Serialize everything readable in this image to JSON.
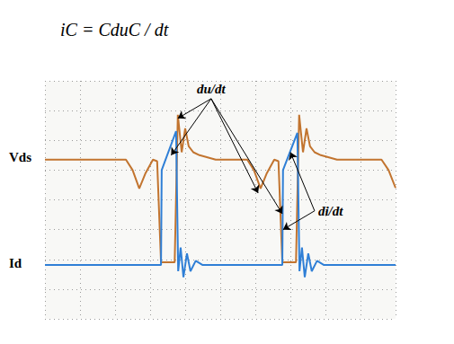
{
  "chart_data": {
    "type": "line",
    "title": "iC = CduC / dt",
    "xlim": [
      0,
      10
    ],
    "ylim": [
      0,
      8
    ],
    "xticks": [
      0,
      1,
      2,
      3,
      4,
      5,
      6,
      7,
      8,
      9,
      10
    ],
    "yticks": [
      0,
      1,
      2,
      3,
      4,
      5,
      6,
      7,
      8
    ],
    "grid": true,
    "tick_labels": false,
    "series": [
      {
        "name": "Vds",
        "color": "#c2742f",
        "x": [
          0,
          2.31,
          2.5,
          2.69,
          2.87,
          3.08,
          3.2,
          3.31,
          3.7,
          3.79,
          3.9,
          4.0,
          4.1,
          4.23,
          4.41,
          4.87,
          5.77,
          5.96,
          6.15,
          6.33,
          6.54,
          6.66,
          6.77,
          7.16,
          7.25,
          7.36,
          7.46,
          7.56,
          7.69,
          7.87,
          8.33,
          9.6,
          9.8,
          10
        ],
        "values": [
          5.35,
          5.35,
          5.0,
          4.38,
          4.9,
          5.35,
          5.3,
          1.9,
          1.9,
          6.86,
          5.6,
          6.4,
          5.8,
          5.6,
          5.5,
          5.35,
          5.35,
          5.0,
          4.38,
          4.9,
          5.35,
          5.3,
          1.9,
          1.9,
          6.86,
          5.6,
          6.4,
          5.8,
          5.6,
          5.5,
          5.35,
          5.35,
          5.0,
          4.4
        ]
      },
      {
        "name": "Id",
        "color": "#2f7fd6",
        "x": [
          0,
          3.31,
          3.33,
          3.74,
          3.8,
          3.87,
          3.95,
          4.05,
          4.15,
          4.3,
          4.5,
          6.77,
          6.79,
          7.2,
          7.26,
          7.33,
          7.41,
          7.51,
          7.61,
          7.76,
          7.96,
          10
        ],
        "values": [
          1.81,
          1.81,
          5.0,
          6.31,
          1.6,
          2.4,
          1.4,
          2.2,
          1.6,
          1.95,
          1.81,
          1.81,
          5.0,
          6.25,
          1.6,
          2.4,
          1.4,
          2.2,
          1.6,
          1.95,
          1.81,
          1.81
        ]
      }
    ],
    "annotations": [
      {
        "text": "du/dt",
        "x": 4.74,
        "y": 7.4,
        "targets": [
          [
            3.79,
            6.74
          ],
          [
            3.6,
            5.5
          ],
          [
            6.08,
            4.23
          ],
          [
            6.77,
            3.53
          ]
        ]
      },
      {
        "text": "di/dt",
        "x": 7.69,
        "y": 3.63,
        "targets": [
          [
            7.0,
            5.6
          ],
          [
            6.79,
            3.0
          ]
        ]
      }
    ]
  }
}
